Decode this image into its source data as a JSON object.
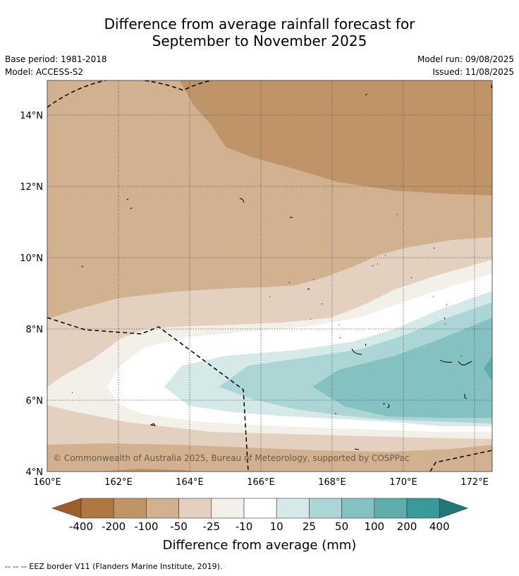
{
  "title_line1": "Difference from average rainfall forecast for",
  "title_line2": "September to November 2025",
  "base_period": "Base period: 1981-2018",
  "model": "Model: ACCESS-S2",
  "model_run": "Model run: 09/08/2025",
  "issued": "Issued: 11/08/2025",
  "copyright": "© Commonwealth of Australia 2025, Bureau of Meteorology, supported by COSPPac",
  "footer": "--  --  -- EEZ border V11 (Flanders Marine Institute, 2019).",
  "x_ticks": [
    "160°E",
    "162°E",
    "164°E",
    "166°E",
    "168°E",
    "170°E",
    "172°E"
  ],
  "y_ticks": [
    "14°N",
    "12°N",
    "10°N",
    "8°N",
    "6°N",
    "4°N"
  ],
  "colorbar": {
    "title": "Difference from average (mm)",
    "labels": [
      "-400",
      "-200",
      "-100",
      "-50",
      "-25",
      "-10",
      "10",
      "25",
      "50",
      "100",
      "200",
      "400"
    ],
    "colors": [
      "#9c5f2b",
      "#b07840",
      "#c09469",
      "#d2b191",
      "#e3d0bf",
      "#f3efe9",
      "#ffffff",
      "#d5e9e8",
      "#acd6d6",
      "#84c1c1",
      "#5eadad",
      "#389a9a",
      "#217878"
    ]
  },
  "colors": {
    "dark_brown": "#c09469",
    "mid_brown": "#d2b191",
    "light_brown": "#e3d0bf",
    "lightest_brown": "#f3efe9",
    "white": "#ffffff",
    "teal1": "#d5e9e8",
    "teal2": "#acd6d6",
    "teal3": "#84c1c1",
    "teal4": "#5eadad"
  }
}
